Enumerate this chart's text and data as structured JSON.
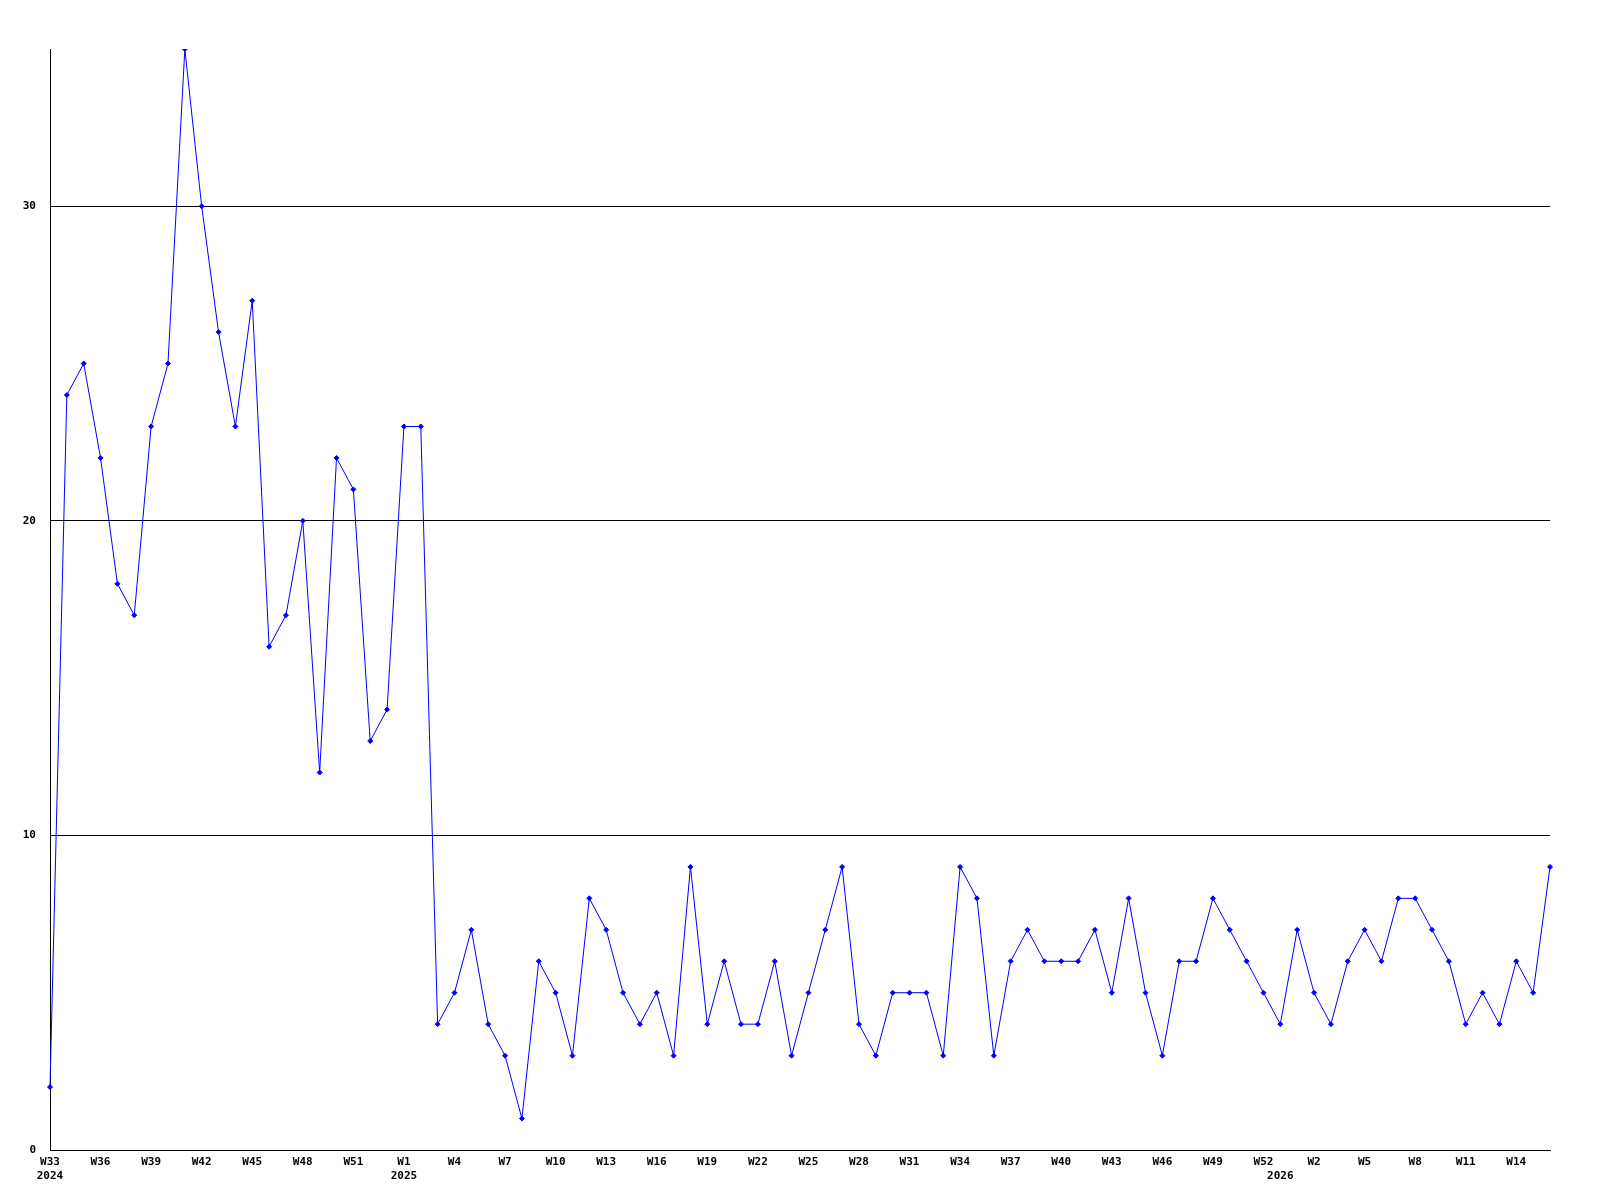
{
  "chart_data": {
    "type": "line",
    "categories": [
      "W33\n2024",
      null,
      null,
      "W36",
      null,
      null,
      "W39",
      null,
      null,
      "W42",
      null,
      null,
      "W45",
      null,
      null,
      "W48",
      null,
      null,
      "W51",
      null,
      null,
      "W1\n2025",
      null,
      null,
      "W4",
      null,
      null,
      "W7",
      null,
      null,
      "W10",
      null,
      null,
      "W13",
      null,
      null,
      "W16",
      null,
      null,
      "W19",
      null,
      null,
      "W22",
      null,
      null,
      "W25",
      null,
      null,
      "W28",
      null,
      null,
      "W31",
      null,
      null,
      "W34",
      null,
      null,
      "W37",
      null,
      null,
      "W40",
      null,
      null,
      "W43",
      null,
      null,
      "W46",
      null,
      null,
      "W49",
      null,
      null,
      "W52",
      "\n2026",
      null,
      "W2",
      null,
      null,
      "W5",
      null,
      null,
      "W8",
      null,
      null,
      "W11",
      null,
      null,
      "W14",
      null,
      null
    ],
    "series": [
      {
        "color": "#0000ff",
        "values": [
          2,
          24,
          25,
          22,
          18,
          17,
          23,
          25,
          35,
          30,
          26,
          23,
          27,
          16,
          17,
          20,
          12,
          22,
          21,
          13,
          14,
          23,
          23,
          4,
          5,
          7,
          4,
          3,
          1,
          6,
          5,
          3,
          8,
          7,
          5,
          4,
          5,
          3,
          9,
          4,
          6,
          4,
          4,
          6,
          3,
          5,
          7,
          9,
          4,
          3,
          5,
          5,
          5,
          3,
          9,
          8,
          3,
          6,
          7,
          6,
          6,
          6,
          7,
          5,
          8,
          5,
          3,
          6,
          6,
          8,
          7,
          6,
          5,
          4,
          7,
          5,
          4,
          6,
          7,
          6,
          8,
          8,
          7,
          6,
          4,
          5,
          4,
          6,
          5,
          9
        ]
      }
    ],
    "ylim": [
      0,
      35
    ],
    "yticks": [
      0,
      10,
      20,
      30
    ],
    "grid": "y",
    "legend": false,
    "marker": "diamond",
    "line_style": "solid"
  }
}
